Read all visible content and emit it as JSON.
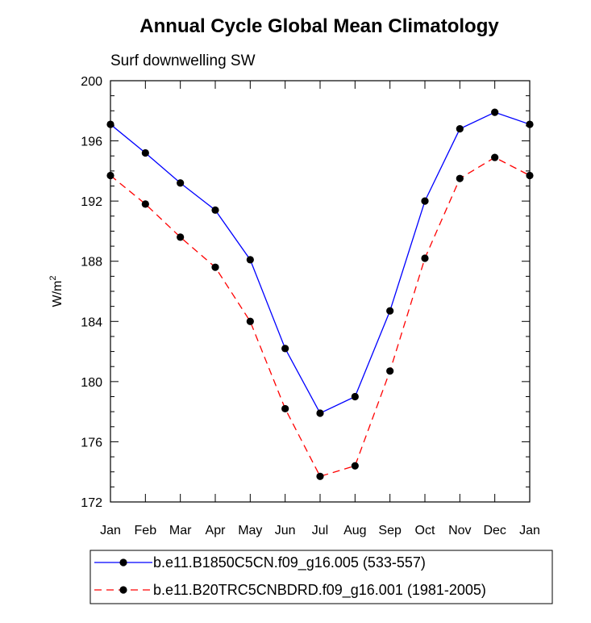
{
  "chart_data": {
    "type": "line",
    "title": "Annual Cycle Global Mean Climatology",
    "subtitle": "Surf downwelling SW",
    "xlabel": "",
    "ylabel": "W/m",
    "ylabel_superscript": "2",
    "categories": [
      "Jan",
      "Feb",
      "Mar",
      "Apr",
      "May",
      "Jun",
      "Jul",
      "Aug",
      "Sep",
      "Oct",
      "Nov",
      "Dec",
      "Jan"
    ],
    "ylim": [
      172,
      200
    ],
    "yticks": [
      172,
      176,
      180,
      184,
      188,
      192,
      196,
      200
    ],
    "yminor_step": 1,
    "series": [
      {
        "name": "b.e11.B1850C5CN.f09_g16.005 (533-557)",
        "color": "#0000ff",
        "dash": "solid",
        "values": [
          197.1,
          195.2,
          193.2,
          191.4,
          188.1,
          182.2,
          177.9,
          179.0,
          184.7,
          192.0,
          196.8,
          197.9,
          197.1
        ]
      },
      {
        "name": "b.e11.B20TRC5CNBDRD.f09_g16.001 (1981-2005)",
        "color": "#ff0000",
        "dash": "dashed",
        "values": [
          193.7,
          191.8,
          189.6,
          187.6,
          184.0,
          178.2,
          173.7,
          174.4,
          180.7,
          188.2,
          193.5,
          194.9,
          193.7
        ]
      }
    ],
    "legend_position": "bottom"
  }
}
